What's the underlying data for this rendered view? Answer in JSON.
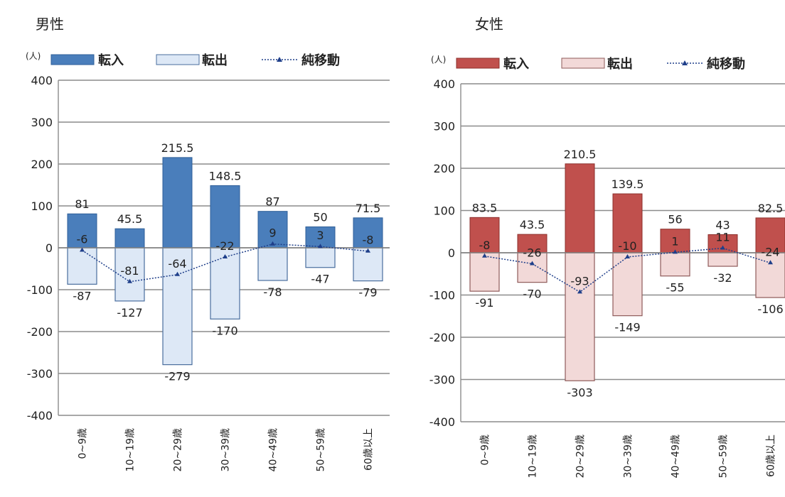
{
  "panels": [
    {
      "title": "男性",
      "chart_data": {
        "type": "bar",
        "unit": "(人)",
        "categories": [
          "0~9歳",
          "10~19歳",
          "20~29歳",
          "30~39歳",
          "40~49歳",
          "50~59歳",
          "60歳以上"
        ],
        "series": [
          {
            "name": "転入",
            "values": [
              81,
              45.5,
              215.5,
              148.5,
              87,
              50,
              71.5
            ]
          },
          {
            "name": "転出",
            "values": [
              -87,
              -127,
              -279,
              -170,
              -78,
              -47,
              -79
            ]
          },
          {
            "name": "純移動",
            "values": [
              -6,
              -81,
              -64,
              -22,
              9,
              3,
              -8
            ]
          }
        ],
        "ylim": [
          -400,
          400
        ],
        "yticks": [
          400,
          300,
          200,
          100,
          0,
          -100,
          -200,
          -300,
          -400
        ],
        "colors": {
          "in": "#4a7ebb",
          "in_stroke": "#2f5f98",
          "out": "#dde8f6",
          "out_stroke": "#4a6e9e",
          "net": "#1f3f8a"
        },
        "grid": true,
        "legend": "top"
      }
    },
    {
      "title": "女性",
      "chart_data": {
        "type": "bar",
        "unit": "(人)",
        "categories": [
          "0~9歳",
          "10~19歳",
          "20~29歳",
          "30~39歳",
          "40~49歳",
          "50~59歳",
          "60歳以上"
        ],
        "series": [
          {
            "name": "転入",
            "values": [
              83.5,
              43.5,
              210.5,
              139.5,
              56,
              43,
              82.5
            ]
          },
          {
            "name": "転出",
            "values": [
              -91,
              -70,
              -303,
              -149,
              -55,
              -32,
              -106
            ]
          },
          {
            "name": "純移動",
            "values": [
              -8,
              -26,
              -93,
              -10,
              1,
              11,
              -24
            ]
          }
        ],
        "ylim": [
          -400,
          400
        ],
        "yticks": [
          400,
          300,
          200,
          100,
          0,
          -100,
          -200,
          -300,
          -400
        ],
        "colors": {
          "in": "#c0504d",
          "in_stroke": "#8c2f2c",
          "out": "#f2d9d8",
          "out_stroke": "#8f5b5a",
          "net": "#1f3f8a"
        },
        "grid": true,
        "legend": "top"
      }
    }
  ]
}
